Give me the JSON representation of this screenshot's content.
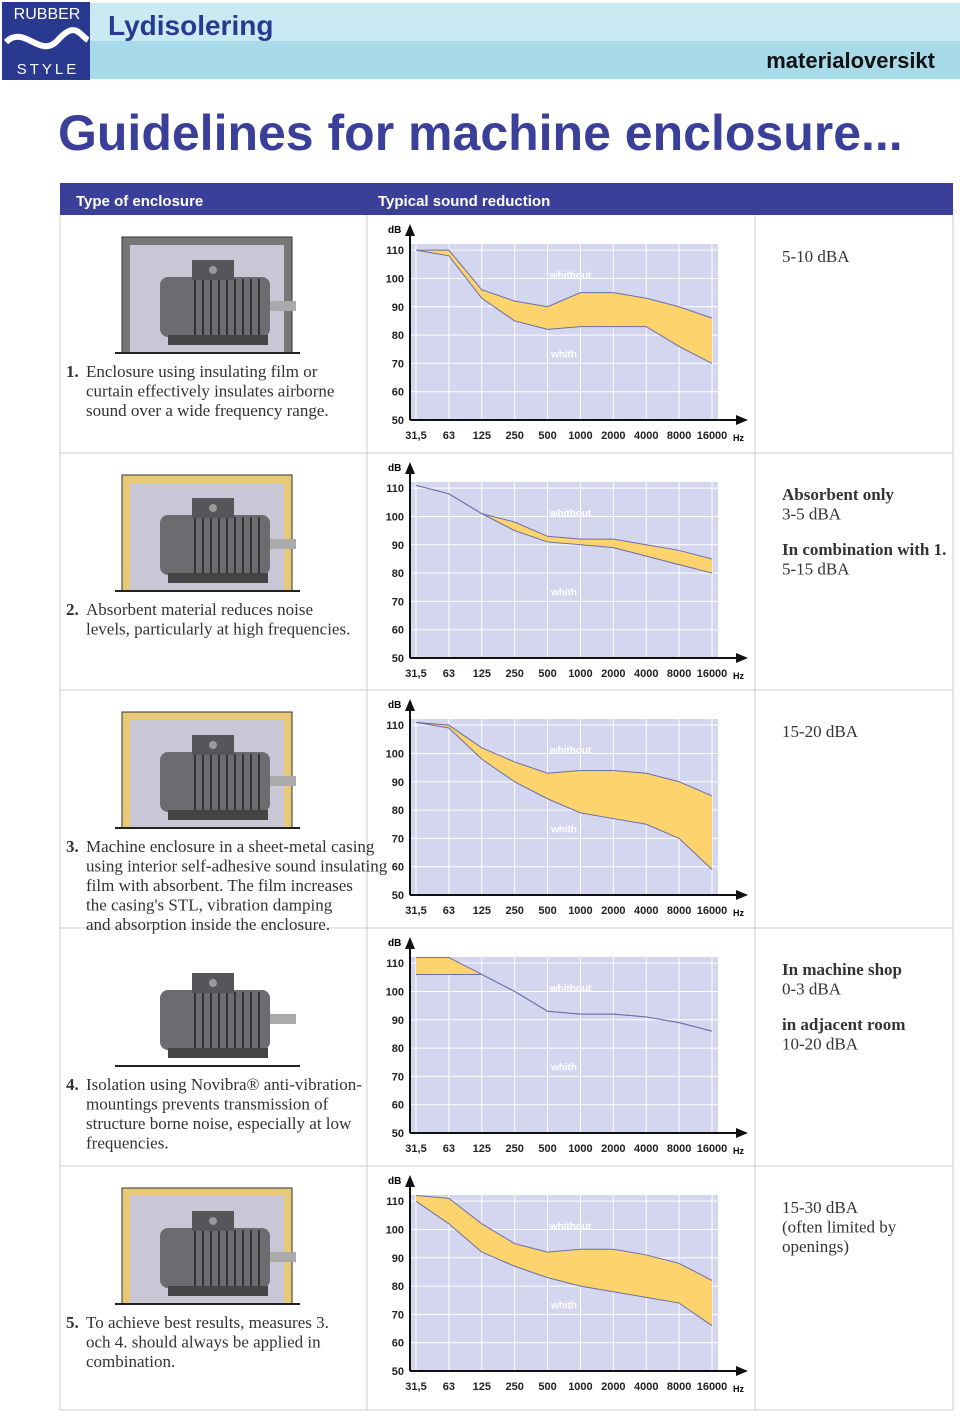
{
  "header": {
    "logo_top": "RUBBER",
    "logo_bottom": "STYLE",
    "title": "Lydisolering",
    "subtitle": "materialoversikt"
  },
  "title": "Guidelines for machine enclosure...",
  "table": {
    "headers": [
      "Type of enclosure",
      "Typical sound reduction"
    ],
    "rows": [
      {
        "number": "1.",
        "lines": [
          "Enclosure using insulating film or",
          "curtain effectively insulates airborne",
          "sound over a wide frequency range."
        ],
        "notes": [
          {
            "text": "5-10 dBA",
            "bold": false
          }
        ]
      },
      {
        "number": "2.",
        "lines": [
          "Absorbent material reduces noise",
          "levels, particularly at high frequencies."
        ],
        "notes": [
          {
            "text": "Absorbent only",
            "bold": true
          },
          {
            "text": "3-5 dBA",
            "bold": false
          },
          {
            "text": "In combination with 1.",
            "bold": true
          },
          {
            "text": "5-15 dBA",
            "bold": false
          }
        ]
      },
      {
        "number": "3.",
        "lines": [
          "Machine enclosure in a sheet-metal casing",
          "using interior self-adhesive sound insulating",
          "film with absorbent. The film increases",
          "the casing's STL, vibration damping",
          "and absorption inside the enclosure."
        ],
        "notes": [
          {
            "text": "15-20 dBA",
            "bold": false
          }
        ]
      },
      {
        "number": "4.",
        "lines": [
          "Isolation using Novibra® anti-vibration-",
          "mountings prevents transmission of",
          "structure borne noise, especially at low",
          "frequencies."
        ],
        "notes": [
          {
            "text": "In machine shop",
            "bold": true
          },
          {
            "text": "0-3 dBA",
            "bold": false
          },
          {
            "text": "in adjacent room",
            "bold": true
          },
          {
            "text": "10-20 dBA",
            "bold": false
          }
        ]
      },
      {
        "number": "5.",
        "lines": [
          "To achieve best results, measures 3.",
          "och 4. should always be applied in",
          "combination."
        ],
        "notes": [
          {
            "text": "15-30 dBA",
            "bold": false
          },
          {
            "text": "(often limited by",
            "bold": false
          },
          {
            "text": "openings)",
            "bold": false
          }
        ]
      }
    ]
  },
  "chart_data": [
    {
      "type": "line",
      "y_label": "dB",
      "x_unit": "Hz",
      "categories": [
        "31,5",
        "63",
        "125",
        "250",
        "500",
        "1000",
        "2000",
        "4000",
        "8000",
        "16000"
      ],
      "series": [
        {
          "name": "whithout",
          "color": "#6a6fa8",
          "values": [
            110,
            110,
            96,
            92,
            90,
            95,
            95,
            93,
            90,
            86
          ]
        },
        {
          "name": "whith",
          "color": "#6a6fa8",
          "values": [
            110,
            108,
            93,
            85,
            82,
            83,
            83,
            83,
            76,
            70
          ]
        }
      ],
      "fill": "#fdd36e",
      "ylim": [
        50,
        115
      ],
      "yticks": [
        50,
        60,
        70,
        80,
        90,
        100,
        110
      ],
      "grid": true
    },
    {
      "type": "line",
      "y_label": "dB",
      "x_unit": "Hz",
      "categories": [
        "31,5",
        "63",
        "125",
        "250",
        "500",
        "1000",
        "2000",
        "4000",
        "8000",
        "16000"
      ],
      "series": [
        {
          "name": "whithout",
          "color": "#6a6fa8",
          "values": [
            111,
            108,
            101,
            98,
            93,
            92,
            92,
            90,
            88,
            85
          ]
        },
        {
          "name": "whith",
          "color": "#6a6fa8",
          "values": [
            111,
            108,
            101,
            95,
            91,
            90,
            89,
            86,
            83,
            80
          ]
        }
      ],
      "fill": "#fdd36e",
      "ylim": [
        50,
        115
      ],
      "yticks": [
        50,
        60,
        70,
        80,
        90,
        100,
        110
      ],
      "grid": true
    },
    {
      "type": "line",
      "y_label": "dB",
      "x_unit": "Hz",
      "categories": [
        "31,5",
        "63",
        "125",
        "250",
        "500",
        "1000",
        "2000",
        "4000",
        "8000",
        "16000"
      ],
      "series": [
        {
          "name": "whithout",
          "color": "#6a6fa8",
          "values": [
            111,
            110,
            102,
            97,
            93,
            94,
            94,
            93,
            90,
            85
          ]
        },
        {
          "name": "whith",
          "color": "#6a6fa8",
          "values": [
            111,
            109,
            98,
            90,
            84,
            79,
            77,
            75,
            70,
            59
          ]
        }
      ],
      "fill": "#fdd36e",
      "ylim": [
        50,
        115
      ],
      "yticks": [
        50,
        60,
        70,
        80,
        90,
        100,
        110
      ],
      "grid": true
    },
    {
      "type": "line",
      "y_label": "dB",
      "x_unit": "Hz",
      "categories": [
        "31,5",
        "63",
        "125",
        "250",
        "500",
        "1000",
        "2000",
        "4000",
        "8000",
        "16000"
      ],
      "series": [
        {
          "name": "whithout",
          "color": "#6a6fa8",
          "values": [
            112,
            112,
            106,
            100,
            93,
            92,
            92,
            91,
            89,
            86
          ]
        },
        {
          "name": "whith",
          "color": "#6a6fa8",
          "values": [
            106,
            106,
            106,
            100,
            93,
            92,
            92,
            91,
            89,
            86
          ]
        }
      ],
      "fill": "#fdd36e",
      "ylim": [
        50,
        115
      ],
      "yticks": [
        50,
        60,
        70,
        80,
        90,
        100,
        110
      ],
      "grid": true
    },
    {
      "type": "line",
      "y_label": "dB",
      "x_unit": "Hz",
      "categories": [
        "31,5",
        "63",
        "125",
        "250",
        "500",
        "1000",
        "2000",
        "4000",
        "8000",
        "16000"
      ],
      "series": [
        {
          "name": "whithout",
          "color": "#6a6fa8",
          "values": [
            112,
            111,
            102,
            95,
            92,
            93,
            93,
            91,
            88,
            82
          ]
        },
        {
          "name": "whith",
          "color": "#6a6fa8",
          "values": [
            110,
            102,
            92,
            87,
            83,
            80,
            78,
            76,
            74,
            66
          ]
        }
      ],
      "fill": "#fdd36e",
      "ylim": [
        50,
        115
      ],
      "yticks": [
        50,
        60,
        70,
        80,
        90,
        100,
        110
      ],
      "grid": true
    }
  ]
}
